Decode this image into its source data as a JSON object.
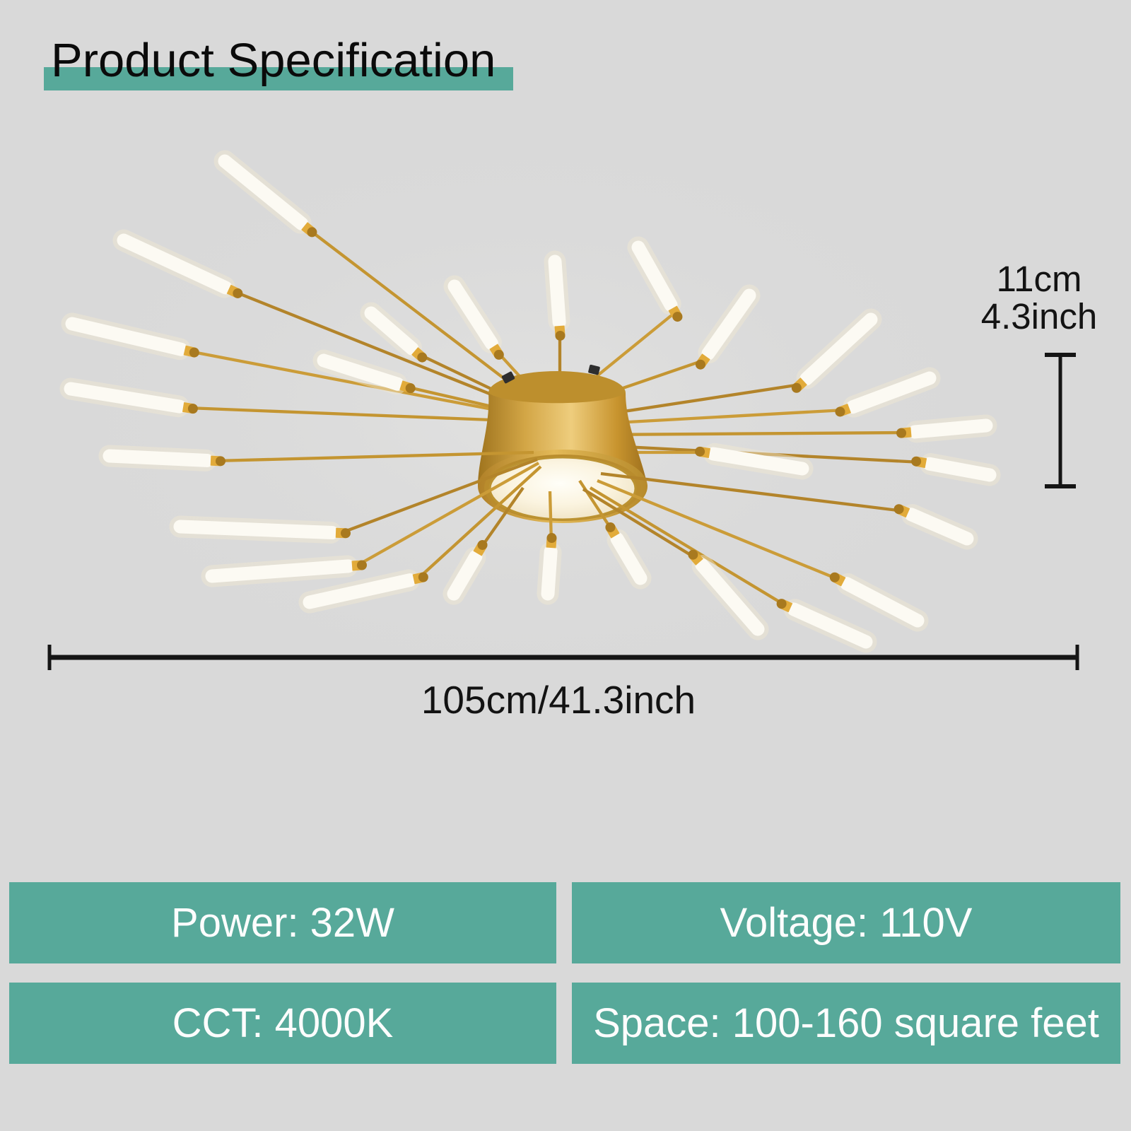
{
  "page": {
    "background_color": "#d9d9d9",
    "accent_color": "#57a99a",
    "text_color": "#131313"
  },
  "header": {
    "title": "Product Specification"
  },
  "dimensions": {
    "height_metric": "11cm",
    "height_imperial": "4.3inch",
    "width_label": "105cm/41.3inch"
  },
  "specs": {
    "cells": [
      "Power: 32W",
      "Voltage: 110V",
      "CCT: 4000K",
      "Space: 100-160 square feet"
    ]
  },
  "lamp": {
    "rod_colors": [
      "#c49531",
      "#b3842a",
      "#cb9c38"
    ],
    "tube_color": "#fcfaf3",
    "halo_color": "#f3ead2",
    "ferrule_color": "#e2ab3a",
    "ferrule_edge_color": "#a8791f",
    "panel_color": "#fdf8e9",
    "body_gold_color": "#c79b36",
    "arms": [
      {
        "layer": "under",
        "s": [
          795,
          598
        ],
        "c": [
          436,
          324
        ],
        "t": [
          318,
          228
        ]
      },
      {
        "layer": "under",
        "s": [
          795,
          598
        ],
        "c": [
          330,
          412
        ],
        "t": [
          175,
          340
        ]
      },
      {
        "layer": "under",
        "s": [
          795,
          598
        ],
        "c": [
          268,
          497
        ],
        "t": [
          102,
          458
        ]
      },
      {
        "layer": "under",
        "s": [
          795,
          598
        ],
        "c": [
          266,
          577
        ],
        "t": [
          100,
          550
        ]
      },
      {
        "layer": "under",
        "s": [
          795,
          598
        ],
        "c": [
          592,
          501
        ],
        "t": [
          525,
          443
        ]
      },
      {
        "layer": "under",
        "s": [
          795,
          598
        ],
        "c": [
          702,
          496
        ],
        "t": [
          643,
          405
        ]
      },
      {
        "layer": "under",
        "s": [
          795,
          598
        ],
        "c": [
          574,
          547
        ],
        "t": [
          458,
          510
        ]
      },
      {
        "layer": "under",
        "s": [
          792,
          560
        ],
        "c": [
          792,
          468
        ],
        "t": [
          785,
          370
        ]
      },
      {
        "layer": "under",
        "s": [
          810,
          560
        ],
        "c": [
          955,
          442
        ],
        "t": [
          903,
          350
        ]
      },
      {
        "layer": "under",
        "s": [
          820,
          570
        ],
        "c": [
          995,
          510
        ],
        "t": [
          1060,
          418
        ]
      },
      {
        "layer": "under",
        "s": [
          830,
          590
        ],
        "c": [
          1132,
          544
        ],
        "t": [
          1232,
          452
        ]
      },
      {
        "layer": "under",
        "s": [
          835,
          600
        ],
        "c": [
          1195,
          580
        ],
        "t": [
          1315,
          535
        ]
      },
      {
        "layer": "under",
        "s": [
          840,
          615
        ],
        "c": [
          1282,
          612
        ],
        "t": [
          1395,
          602
        ]
      },
      {
        "layer": "under",
        "s": [
          845,
          630
        ],
        "c": [
          1303,
          654
        ],
        "t": [
          1400,
          672
        ]
      },
      {
        "layer": "under",
        "s": [
          840,
          640
        ],
        "c": [
          997,
          640
        ],
        "t": [
          1135,
          663
        ]
      },
      {
        "layer": "over",
        "s": [
          755,
          640
        ],
        "c": [
          305,
          652
        ],
        "t": [
          155,
          645
        ]
      },
      {
        "layer": "over",
        "s": [
          760,
          650
        ],
        "c": [
          482,
          754
        ],
        "t": [
          255,
          745
        ]
      },
      {
        "layer": "over",
        "s": [
          762,
          655
        ],
        "c": [
          505,
          800
        ],
        "t": [
          300,
          815
        ]
      },
      {
        "layer": "over",
        "s": [
          765,
          660
        ],
        "c": [
          592,
          818
        ],
        "t": [
          438,
          852
        ]
      },
      {
        "layer": "over",
        "s": [
          740,
          690
        ],
        "c": [
          679,
          777
        ],
        "t": [
          642,
          840
        ]
      },
      {
        "layer": "over",
        "s": [
          778,
          695
        ],
        "c": [
          780,
          768
        ],
        "t": [
          775,
          840
        ]
      },
      {
        "layer": "over",
        "s": [
          820,
          680
        ],
        "c": [
          867,
          752
        ],
        "t": [
          906,
          818
        ]
      },
      {
        "layer": "over",
        "s": [
          850,
          670
        ],
        "c": [
          1278,
          723
        ],
        "t": [
          1368,
          762
        ]
      },
      {
        "layer": "over",
        "s": [
          845,
          680
        ],
        "c": [
          1187,
          820
        ],
        "t": [
          1298,
          878
        ]
      },
      {
        "layer": "over",
        "s": [
          835,
          690
        ],
        "c": [
          1112,
          857
        ],
        "t": [
          1225,
          908
        ]
      },
      {
        "layer": "over",
        "s": [
          825,
          692
        ],
        "c": [
          985,
          790
        ],
        "t": [
          1072,
          890
        ]
      }
    ]
  }
}
